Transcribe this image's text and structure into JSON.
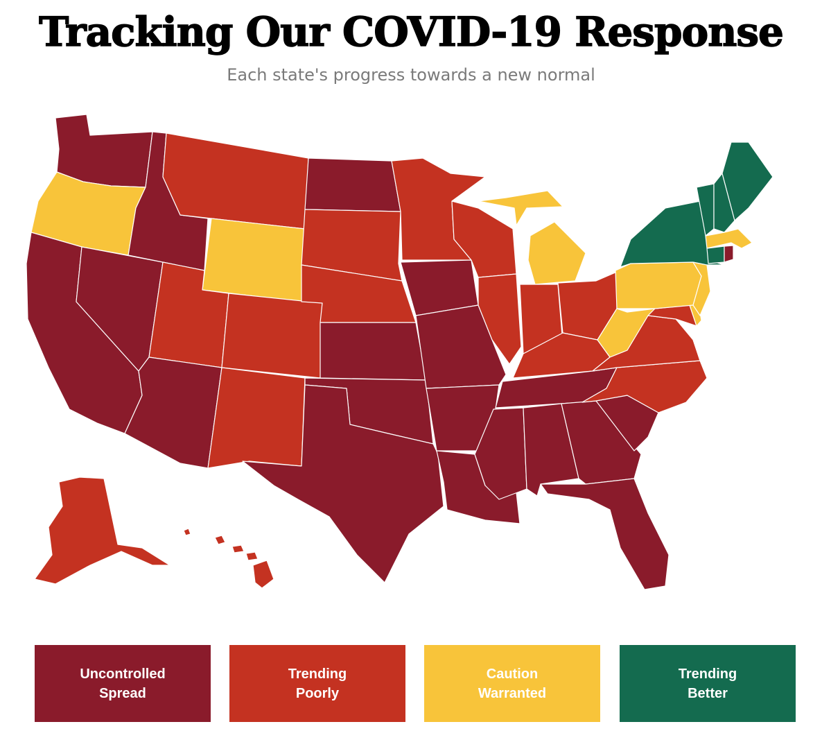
{
  "header": {
    "title": "Tracking Our COVID-19 Response",
    "subtitle": "Each state's progress towards a new normal"
  },
  "colors": {
    "uncontrolled": "#8a1b2b",
    "trending_poorly": "#c43221",
    "caution": "#f8c43a",
    "trending_better": "#146b4f"
  },
  "legend": {
    "uncontrolled": "Uncontrolled\nSpread",
    "trending_poorly": "Trending\nPoorly",
    "caution": "Caution\nWarranted",
    "trending_better": "Trending\nBetter"
  },
  "states": {
    "WA": "uncontrolled",
    "OR": "caution",
    "CA": "uncontrolled",
    "NV": "uncontrolled",
    "ID": "uncontrolled",
    "MT": "trending_poorly",
    "WY": "caution",
    "UT": "trending_poorly",
    "AZ": "uncontrolled",
    "CO": "trending_poorly",
    "NM": "trending_poorly",
    "ND": "uncontrolled",
    "SD": "trending_poorly",
    "NE": "trending_poorly",
    "KS": "uncontrolled",
    "OK": "uncontrolled",
    "TX": "uncontrolled",
    "MN": "trending_poorly",
    "IA": "uncontrolled",
    "MO": "uncontrolled",
    "AR": "uncontrolled",
    "LA": "uncontrolled",
    "WI": "trending_poorly",
    "IL": "trending_poorly",
    "MI": "caution",
    "IN": "trending_poorly",
    "OH": "trending_poorly",
    "KY": "trending_poorly",
    "TN": "uncontrolled",
    "MS": "uncontrolled",
    "AL": "uncontrolled",
    "GA": "uncontrolled",
    "FL": "uncontrolled",
    "SC": "uncontrolled",
    "NC": "trending_poorly",
    "VA": "trending_poorly",
    "WV": "caution",
    "PA": "caution",
    "NY": "trending_better",
    "VT": "trending_better",
    "NH": "trending_better",
    "ME": "trending_better",
    "MA": "caution",
    "CT": "trending_better",
    "RI": "uncontrolled",
    "NJ": "caution",
    "DE": "caution",
    "MD": "trending_poorly",
    "AK": "trending_poorly",
    "HI": "trending_poorly"
  }
}
